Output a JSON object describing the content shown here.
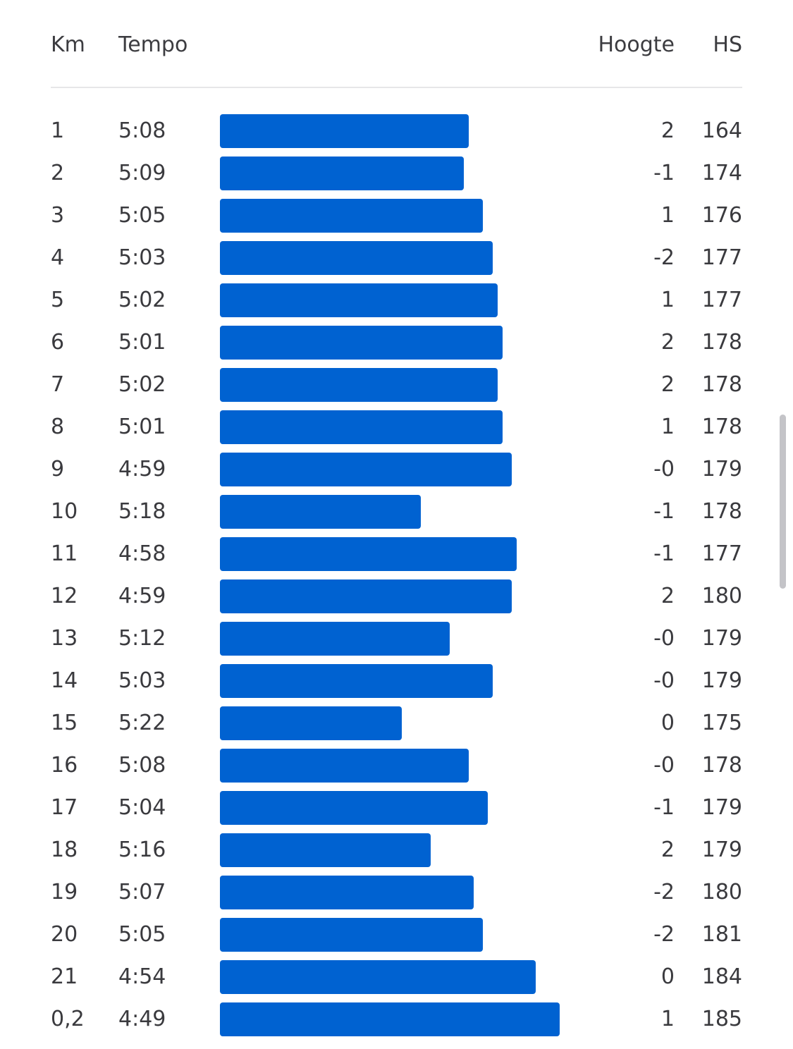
{
  "table": {
    "headers": {
      "km": "Km",
      "pace": "Tempo",
      "elevation": "Hoogte",
      "heart_rate": "HS"
    },
    "bar_color": "#0062d1"
  },
  "chart_data": {
    "type": "bar",
    "orientation": "horizontal",
    "categories": [
      "1",
      "2",
      "3",
      "4",
      "5",
      "6",
      "7",
      "8",
      "9",
      "10",
      "11",
      "12",
      "13",
      "14",
      "15",
      "16",
      "17",
      "18",
      "19",
      "20",
      "21",
      "0,2"
    ],
    "pace_labels": [
      "5:08",
      "5:09",
      "5:05",
      "5:03",
      "5:02",
      "5:01",
      "5:02",
      "5:01",
      "4:59",
      "5:18",
      "4:58",
      "4:59",
      "5:12",
      "5:03",
      "5:22",
      "5:08",
      "5:04",
      "5:16",
      "5:07",
      "5:05",
      "4:54",
      "4:49"
    ],
    "pace_seconds": [
      308,
      309,
      305,
      303,
      302,
      301,
      302,
      301,
      299,
      318,
      298,
      299,
      312,
      303,
      322,
      308,
      304,
      316,
      307,
      305,
      294,
      289
    ],
    "elevation": [
      "2",
      "-1",
      "1",
      "-2",
      "1",
      "2",
      "2",
      "1",
      "-0",
      "-1",
      "-1",
      "2",
      "-0",
      "-0",
      "0",
      "-0",
      "-1",
      "2",
      "-2",
      "-2",
      "0",
      "1"
    ],
    "heart_rate": [
      "164",
      "174",
      "176",
      "177",
      "177",
      "178",
      "178",
      "178",
      "179",
      "178",
      "177",
      "180",
      "179",
      "179",
      "175",
      "178",
      "179",
      "179",
      "180",
      "181",
      "184",
      "185"
    ]
  }
}
